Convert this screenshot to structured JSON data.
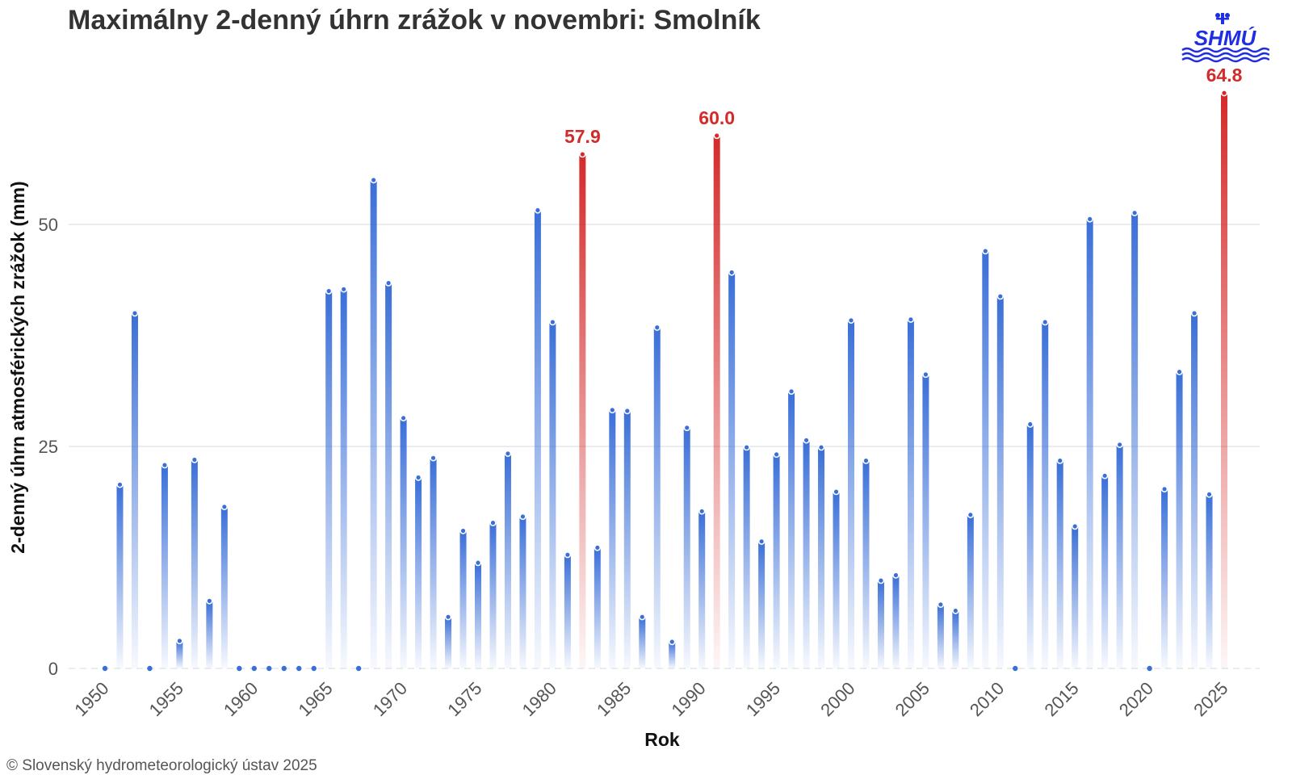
{
  "title": "Maximálny 2-denný úhrn zrážok v novembri: Smolník",
  "logo_text": "SHMÚ",
  "copyright": "© Slovenský hydrometeorologický ústav 2025",
  "colors": {
    "normal_bar": "#3a6fd8",
    "record_bar": "#d42a2a",
    "grid": "#e4e6ea",
    "logo": "#1f2ee0"
  },
  "chart_data": {
    "type": "bar",
    "xlabel": "Rok",
    "ylabel": "2-denný úhrn atmosférických zrážok (mm)",
    "ylim": [
      0,
      68
    ],
    "yticks": [
      0,
      25,
      50
    ],
    "xticks": [
      1950,
      1955,
      1960,
      1965,
      1970,
      1975,
      1980,
      1985,
      1990,
      1995,
      2000,
      2005,
      2010,
      2015,
      2020,
      2025
    ],
    "grid": true,
    "x": [
      1950,
      1951,
      1952,
      1953,
      1954,
      1955,
      1956,
      1957,
      1958,
      1959,
      1960,
      1961,
      1962,
      1963,
      1964,
      1965,
      1966,
      1967,
      1968,
      1969,
      1970,
      1971,
      1972,
      1973,
      1974,
      1975,
      1976,
      1977,
      1978,
      1979,
      1980,
      1981,
      1982,
      1983,
      1984,
      1985,
      1986,
      1987,
      1988,
      1989,
      1990,
      1991,
      1992,
      1993,
      1994,
      1995,
      1996,
      1997,
      1998,
      1999,
      2000,
      2001,
      2002,
      2003,
      2004,
      2005,
      2006,
      2007,
      2008,
      2009,
      2010,
      2011,
      2012,
      2013,
      2014,
      2015,
      2016,
      2017,
      2018,
      2019,
      2020,
      2021,
      2022,
      2023,
      2024,
      2025
    ],
    "values": [
      0,
      20.7,
      40.0,
      0,
      22.9,
      3.1,
      23.5,
      7.6,
      18.2,
      0,
      0,
      0,
      0,
      0,
      0,
      42.5,
      42.7,
      0,
      55.0,
      43.4,
      28.2,
      21.5,
      23.7,
      5.8,
      15.5,
      11.9,
      16.4,
      24.2,
      17.1,
      51.6,
      39.0,
      12.8,
      57.9,
      13.6,
      29.1,
      29.0,
      5.8,
      38.4,
      3.0,
      27.1,
      17.7,
      60.0,
      44.6,
      24.9,
      14.3,
      24.1,
      31.2,
      25.7,
      24.9,
      19.9,
      39.2,
      23.4,
      9.9,
      10.5,
      39.3,
      33.1,
      7.2,
      6.5,
      17.3,
      47.0,
      41.9,
      0,
      27.5,
      39.0,
      23.4,
      16.0,
      50.6,
      21.7,
      25.2,
      51.3,
      0,
      20.2,
      33.4,
      40.0,
      19.6,
      64.8
    ],
    "highlighted": [
      {
        "year": 1982,
        "value": 57.9,
        "label": "57.9"
      },
      {
        "year": 1991,
        "value": 60.0,
        "label": "60.0"
      },
      {
        "year": 2025,
        "value": 64.8,
        "label": "64.8"
      }
    ]
  }
}
